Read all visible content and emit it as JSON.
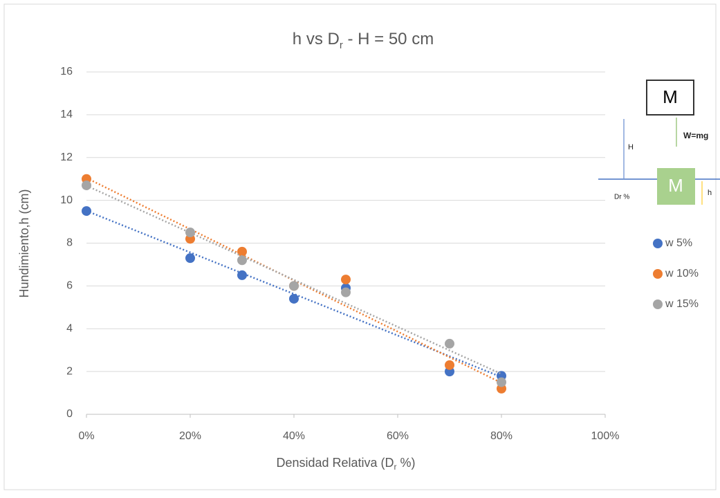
{
  "chart_data": {
    "type": "scatter",
    "title": [
      "h vs D",
      "r",
      " - H = 50 cm"
    ],
    "x_label": [
      "Densidad Relativa (D",
      "r",
      " %)"
    ],
    "y_label": "Hundimiento,h (cm)",
    "x": [
      0,
      20,
      30,
      40,
      50,
      70,
      80
    ],
    "series": [
      {
        "name": "w 5%",
        "color": "#4472c4",
        "values": [
          9.5,
          7.3,
          6.5,
          5.4,
          5.9,
          2.0,
          1.8
        ]
      },
      {
        "name": "w 10%",
        "color": "#ed7d31",
        "values": [
          11.0,
          8.2,
          7.6,
          6.0,
          6.3,
          2.3,
          1.2
        ]
      },
      {
        "name": "w 15%",
        "color": "#a5a5a5",
        "values": [
          10.7,
          8.5,
          7.2,
          6.0,
          5.7,
          3.3,
          1.5
        ]
      }
    ],
    "trendline": "linear",
    "xlim": [
      0,
      100
    ],
    "xticks": [
      {
        "value": 0,
        "label": "0%"
      },
      {
        "value": 20,
        "label": "20%"
      },
      {
        "value": 40,
        "label": "40%"
      },
      {
        "value": 60,
        "label": "60%"
      },
      {
        "value": 80,
        "label": "80%"
      },
      {
        "value": 100,
        "label": "100%"
      }
    ],
    "ylim": [
      0,
      16
    ],
    "yticks": [
      0,
      2,
      4,
      6,
      8,
      10,
      12,
      14,
      16
    ],
    "grid": true,
    "legend": "right"
  },
  "diagram": {
    "mass": "M",
    "weight": "W=mg",
    "height": "H",
    "sunk_mass": "M",
    "sink": "h",
    "density": "Dr %"
  }
}
